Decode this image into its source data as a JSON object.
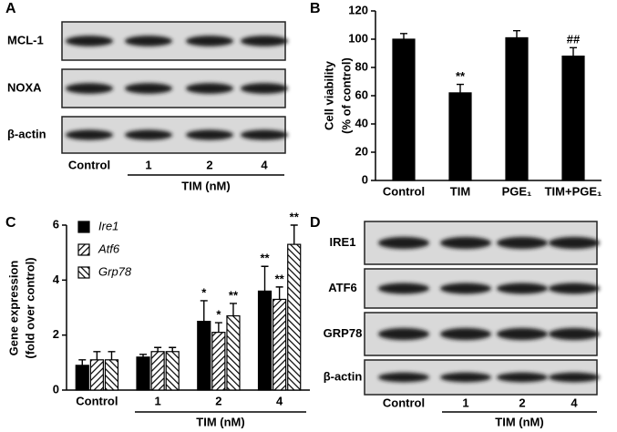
{
  "chart_data": [
    {
      "type": "bar",
      "panel_label": "B",
      "ylabel": [
        "Cell viability",
        "(% of control)"
      ],
      "categories": [
        "Control",
        "TIM",
        "PGE₁",
        "TIM+PGE₁"
      ],
      "series": [
        {
          "name": "Cell viability",
          "color": "#000000",
          "fill": "solid",
          "values": [
            100,
            62,
            101,
            88
          ],
          "errors": [
            4,
            6,
            5,
            6
          ],
          "annotations": [
            null,
            "**",
            null,
            "##"
          ]
        }
      ],
      "ylim": [
        0,
        120
      ],
      "yticks": [
        0,
        20,
        40,
        60,
        80,
        100,
        120
      ],
      "legend": false
    },
    {
      "type": "bar",
      "panel_label": "C",
      "ylabel": [
        "Gene expression",
        "(fold over control)"
      ],
      "xlabel": "TIM (nM)",
      "categories": [
        "Control",
        "1",
        "2",
        "4"
      ],
      "series": [
        {
          "name": "Ire1",
          "color": "#000000",
          "fill": "solid",
          "values": [
            0.9,
            1.2,
            2.5,
            3.6
          ],
          "errors": [
            0.2,
            0.1,
            0.75,
            0.9
          ],
          "annotations": [
            null,
            null,
            "*",
            "**"
          ]
        },
        {
          "name": "Atf6",
          "color": "#000000",
          "fill": "hatch-right",
          "values": [
            1.1,
            1.4,
            2.1,
            3.3
          ],
          "errors": [
            0.3,
            0.15,
            0.35,
            0.45
          ],
          "annotations": [
            null,
            null,
            "*",
            "**"
          ]
        },
        {
          "name": "Grp78",
          "color": "#000000",
          "fill": "hatch-left",
          "values": [
            1.1,
            1.4,
            2.7,
            5.3
          ],
          "errors": [
            0.3,
            0.15,
            0.45,
            0.7
          ],
          "annotations": [
            null,
            null,
            "**",
            "**"
          ]
        }
      ],
      "ylim": [
        0,
        6
      ],
      "yticks": [
        0,
        2,
        4,
        6
      ],
      "legend": true,
      "legend_position": "upper left"
    }
  ],
  "blots": [
    {
      "panel_label": "A",
      "rows": [
        "MCL-1",
        "NOXA",
        "β-actin"
      ],
      "lanes": [
        "Control",
        "1",
        "2",
        "4"
      ],
      "xlabel": "TIM (nM)"
    },
    {
      "panel_label": "D",
      "rows": [
        "IRE1",
        "ATF6",
        "GRP78",
        "β-actin"
      ],
      "lanes": [
        "Control",
        "1",
        "2",
        "4"
      ],
      "xlabel": "TIM (nM)"
    }
  ]
}
